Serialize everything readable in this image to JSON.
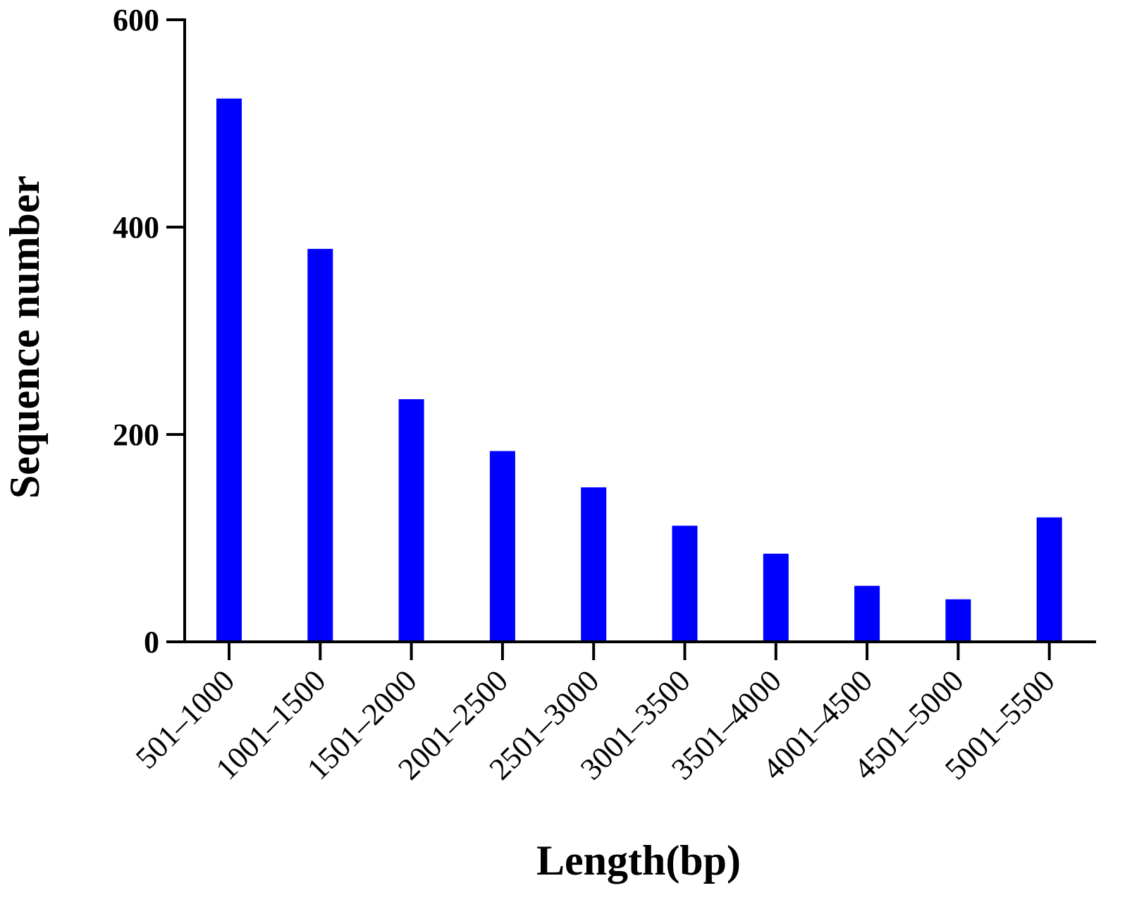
{
  "chart_data": {
    "type": "bar",
    "title": "",
    "xlabel": "Length(bp)",
    "ylabel": "Sequence number",
    "categories": [
      "501–1000",
      "1001–1500",
      "1501–2000",
      "2001–2500",
      "2501–3000",
      "3001–3500",
      "3501–4000",
      "4001–4500",
      "4501–5000",
      "5001–5500"
    ],
    "series": [
      {
        "values": [
          524,
          379,
          234,
          184,
          149,
          112,
          85,
          54,
          41,
          120
        ]
      }
    ],
    "ylim": [
      0,
      600
    ],
    "yticks": [
      0,
      200,
      400,
      600
    ],
    "grid": false,
    "colors": {
      "bar": "#0000ff",
      "axis": "#000000"
    }
  }
}
